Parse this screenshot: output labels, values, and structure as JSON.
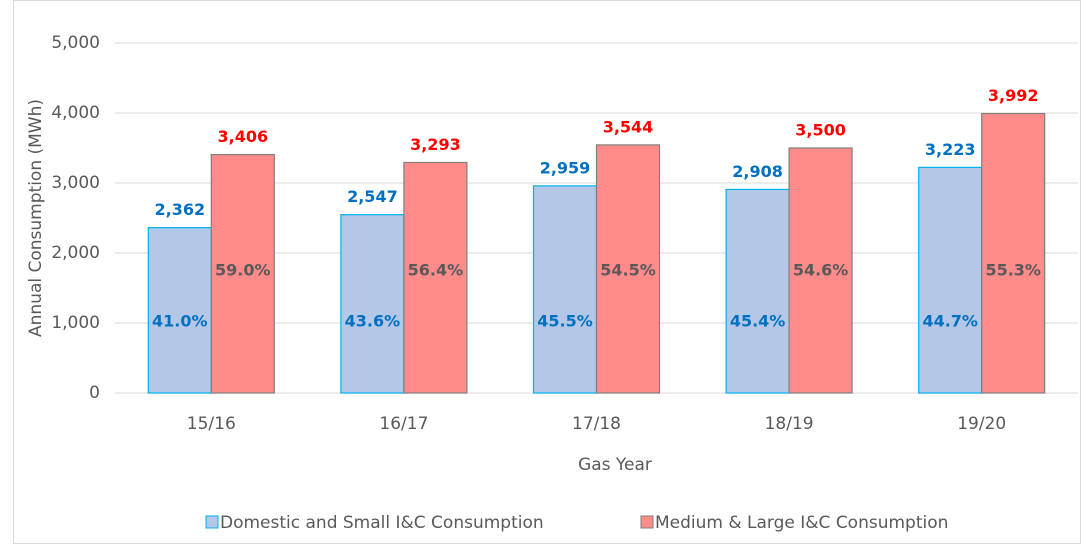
{
  "chart_data": {
    "type": "bar",
    "x_label": "Gas Year",
    "y_label": "Annual Consumption (MWh)",
    "categories": [
      "15/16",
      "16/17",
      "17/18",
      "18/19",
      "19/20"
    ],
    "series": [
      {
        "name": "Domestic and Small I&C Consumption",
        "color": "#b4c7e7",
        "edge": "#00b0f0",
        "label_color": "#0070c0",
        "share_color": "#0070c0",
        "values": [
          2362,
          2547,
          2959,
          2908,
          3223
        ],
        "value_labels": [
          "2,362",
          "2,547",
          "2,959",
          "2,908",
          "3,223"
        ],
        "share_labels": [
          "41.0%",
          "43.6%",
          "45.5%",
          "45.4%",
          "44.7%"
        ]
      },
      {
        "name": "Medium & Large I&C Consumption",
        "color": "#ff8b8b",
        "edge": "#7f7f7f",
        "label_color": "#ff0000",
        "share_color": "#595959",
        "values": [
          3406,
          3293,
          3544,
          3500,
          3992
        ],
        "value_labels": [
          "3,406",
          "3,293",
          "3,544",
          "3,500",
          "3,992"
        ],
        "share_labels": [
          "59.0%",
          "56.4%",
          "54.5%",
          "54.6%",
          "55.3%"
        ]
      }
    ],
    "ylim": [
      0,
      5000
    ],
    "yticks": [
      0,
      {
        "value": 1000,
        "label": "1,000"
      },
      {
        "value": 2000,
        "label": "2,000"
      },
      {
        "value": 3000,
        "label": "3,000"
      },
      {
        "value": 4000,
        "label": "4,000"
      },
      {
        "value": 5000,
        "label": "5,000"
      }
    ],
    "grid": true,
    "legend": "bottom"
  }
}
